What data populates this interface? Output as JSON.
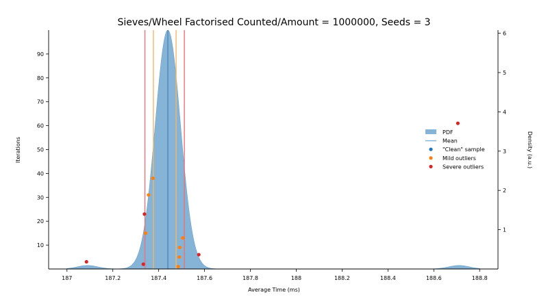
{
  "chart_data": {
    "type": "kde-with-scatter",
    "title": "Sieves/Wheel Factorised Counted/Amount = 1000000, Seeds = 3",
    "xlabel": "Average Time (ms)",
    "ylabel": "Iterations",
    "y2label": "Density (a.u.)",
    "xlim": [
      186.92,
      188.88
    ],
    "ylim": [
      0,
      100
    ],
    "y2lim": [
      0,
      6.08
    ],
    "x_ticks": [
      187,
      187.2,
      187.4,
      187.6,
      187.8,
      188,
      188.2,
      188.4,
      188.6,
      188.8
    ],
    "x_tick_labels": [
      "187",
      "187.2",
      "187.4",
      "187.6",
      "187.8",
      "188",
      "188.2",
      "188.4",
      "188.6",
      "188.8"
    ],
    "y_ticks": [
      10,
      20,
      30,
      40,
      50,
      60,
      70,
      80,
      90
    ],
    "y_tick_labels": [
      "10",
      "20",
      "30",
      "40",
      "50",
      "60",
      "70",
      "80",
      "90"
    ],
    "y2_ticks": [
      1,
      2,
      3,
      4,
      5,
      6
    ],
    "y2_tick_labels": [
      "1",
      "2",
      "3",
      "4",
      "5",
      "6"
    ],
    "mean": 187.44,
    "mild_thresholds": [
      187.377,
      187.476
    ],
    "severe_thresholds": [
      187.34,
      187.512
    ],
    "pdf": {
      "x_range": [
        187.0,
        188.8
      ],
      "components": [
        {
          "center": 187.44,
          "sigma": 0.055,
          "peak": 6.08
        },
        {
          "center": 187.09,
          "sigma": 0.045,
          "peak": 0.09
        },
        {
          "center": 188.71,
          "sigma": 0.045,
          "peak": 0.09
        }
      ]
    },
    "legend": {
      "position": "right",
      "entries": [
        {
          "label": "PDF",
          "kind": "pdf"
        },
        {
          "label": "Mean",
          "kind": "mean"
        },
        {
          "label": "\"Clean\" sample",
          "kind": "clean"
        },
        {
          "label": "Mild outliers",
          "kind": "mild"
        },
        {
          "label": "Severe outliers",
          "kind": "severe"
        }
      ]
    },
    "samples": [
      {
        "x": 187.085,
        "y": 3,
        "class": "severe"
      },
      {
        "x": 187.333,
        "y": 2,
        "class": "severe"
      },
      {
        "x": 187.338,
        "y": 23,
        "class": "severe"
      },
      {
        "x": 187.343,
        "y": 15,
        "class": "mild"
      },
      {
        "x": 187.356,
        "y": 31,
        "class": "mild"
      },
      {
        "x": 187.375,
        "y": 38,
        "class": "mild"
      },
      {
        "x": 187.485,
        "y": 1,
        "class": "mild"
      },
      {
        "x": 187.49,
        "y": 5,
        "class": "mild"
      },
      {
        "x": 187.492,
        "y": 9,
        "class": "mild"
      },
      {
        "x": 187.505,
        "y": 13,
        "class": "mild"
      },
      {
        "x": 187.575,
        "y": 6,
        "class": "severe"
      },
      {
        "x": 188.705,
        "y": 61,
        "class": "severe"
      }
    ]
  },
  "colors": {
    "pdf_fill": "#85b4d6",
    "pdf_edge": "#6aa2cc",
    "mean": "#4a7fb3",
    "clean": "#1f77b4",
    "mild": "#ff7f0e",
    "severe": "#d62728",
    "severe_line": "#e8737a",
    "mild_line": "#f5b466",
    "axis": "#000000"
  }
}
